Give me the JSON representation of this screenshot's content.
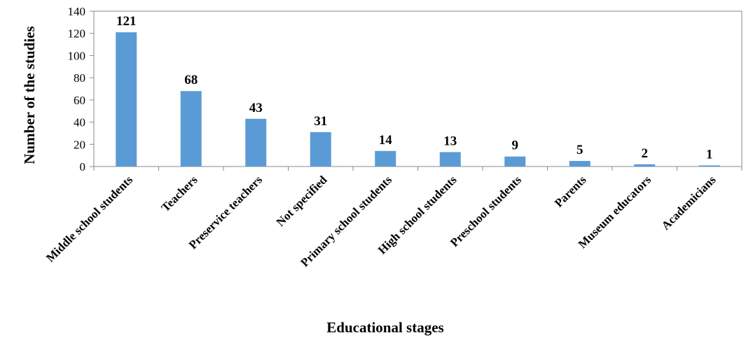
{
  "chart_data": {
    "type": "bar",
    "categories": [
      "Middle school students",
      "Teachers",
      "Preservice teachers",
      "Not specified",
      "Primary school students",
      "High school students",
      "Preschool students",
      "Parents",
      "Museum educators",
      "Academicians"
    ],
    "values": [
      121,
      68,
      43,
      31,
      14,
      13,
      9,
      5,
      2,
      1
    ],
    "data_labels": [
      "121",
      "68",
      "43",
      "31",
      "14",
      "13",
      "9",
      "5",
      "2",
      "1"
    ],
    "yticks": [
      "0",
      "20",
      "40",
      "60",
      "80",
      "100",
      "120",
      "140"
    ],
    "ylim": [
      0,
      140
    ],
    "xlabel": "Educational stages",
    "ylabel": "Number of the studies",
    "grid": false,
    "legend": "none",
    "bar_color": "#5B9BD5"
  }
}
